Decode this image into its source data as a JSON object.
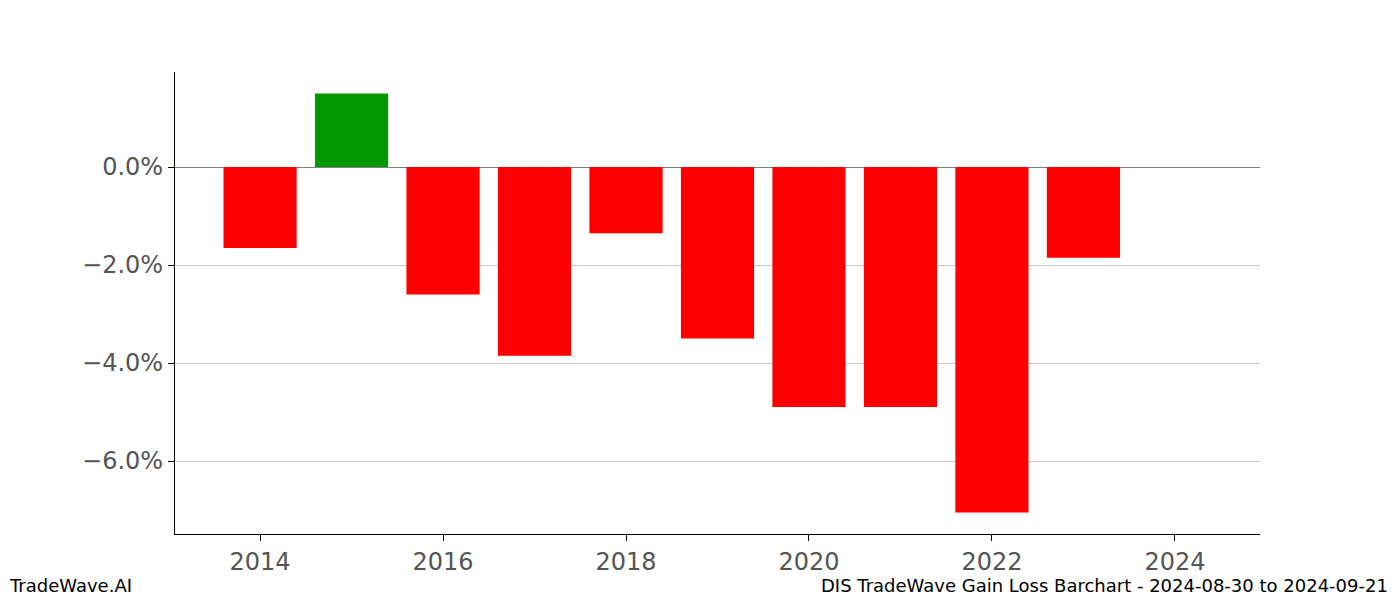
{
  "chart_data": {
    "type": "bar",
    "x": [
      2014,
      2015,
      2016,
      2017,
      2018,
      2019,
      2020,
      2021,
      2022,
      2023
    ],
    "values": [
      -1.65,
      1.5,
      -2.6,
      -3.85,
      -1.35,
      -3.5,
      -4.9,
      -4.9,
      -7.05,
      -1.85
    ],
    "colors": [
      "#ff0000",
      "#009900",
      "#ff0000",
      "#ff0000",
      "#ff0000",
      "#ff0000",
      "#ff0000",
      "#ff0000",
      "#ff0000",
      "#ff0000"
    ],
    "xlim": [
      2013.07,
      2024.93
    ],
    "xticks": [
      2014,
      2016,
      2018,
      2020,
      2022,
      2024
    ],
    "ylim": [
      -7.49,
      1.94
    ],
    "yticks": [
      {
        "value": 0,
        "label": "0.0%"
      },
      {
        "value": -2,
        "label": "−2.0%"
      },
      {
        "value": -4,
        "label": "−4.0%"
      },
      {
        "value": -6,
        "label": "−6.0%"
      }
    ],
    "grid": true,
    "annotations": [
      "TradeWave.AI",
      "DIS TradeWave Gain Loss Barchart - 2024-08-30 to 2024-09-21"
    ]
  }
}
